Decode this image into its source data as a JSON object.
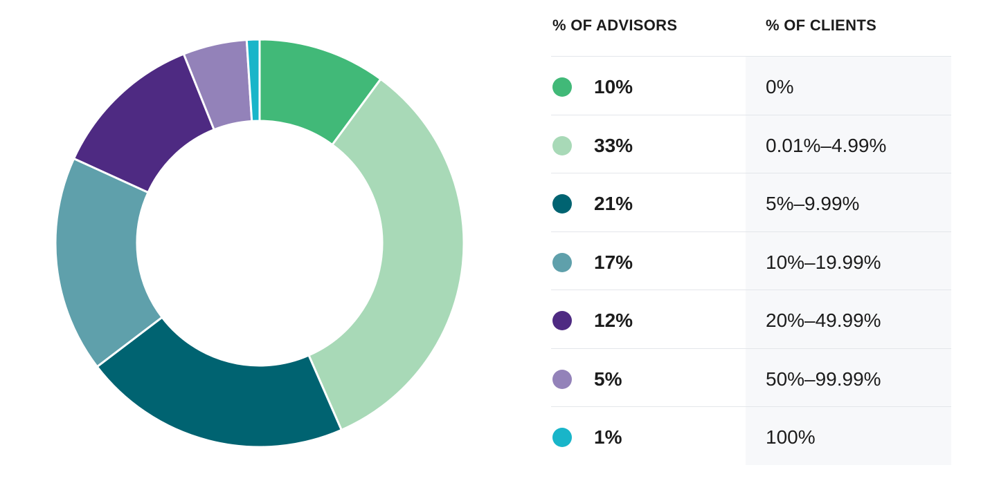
{
  "chart_data": {
    "type": "pie",
    "variant": "donut",
    "columns": {
      "advisors": "% OF ADVISORS",
      "clients": "% OF CLIENTS"
    },
    "slices": [
      {
        "value": 10,
        "advisors_label": "10%",
        "clients_label": "0%",
        "color": "#41b978"
      },
      {
        "value": 33,
        "advisors_label": "33%",
        "clients_label": "0.01%–4.99%",
        "color": "#a8d9b7"
      },
      {
        "value": 21,
        "advisors_label": "21%",
        "clients_label": "5%–9.99%",
        "color": "#006371"
      },
      {
        "value": 17,
        "advisors_label": "17%",
        "clients_label": "10%–19.99%",
        "color": "#5fa0ab"
      },
      {
        "value": 12,
        "advisors_label": "12%",
        "clients_label": "20%–49.99%",
        "color": "#4e2a82"
      },
      {
        "value": 5,
        "advisors_label": "5%",
        "clients_label": "50%–99.99%",
        "color": "#9382b9"
      },
      {
        "value": 1,
        "advisors_label": "1%",
        "clients_label": "100%",
        "color": "#19b5c9"
      }
    ]
  }
}
